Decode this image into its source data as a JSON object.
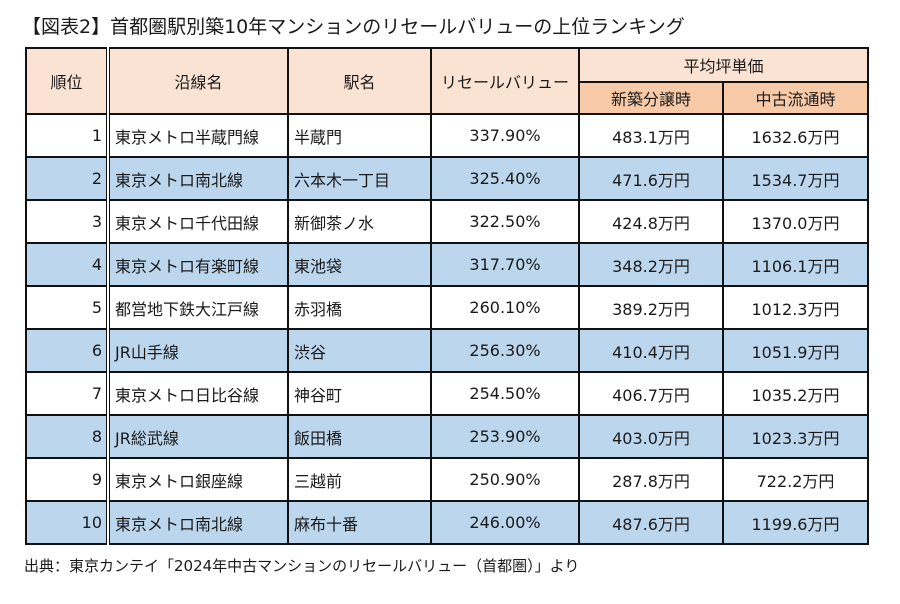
{
  "title": "【図表2】首都圏駅別築10年マンションのリセールバリューの上位ランキング",
  "table": {
    "headers": {
      "rank": "順位",
      "line": "沿線名",
      "station": "駅名",
      "resale_value": "リセールバリュー",
      "avg_price_group": "平均坪単価",
      "new_sale": "新築分譲時",
      "used": "中古流通時"
    },
    "rows": [
      {
        "rank": "1",
        "line": "東京メトロ半蔵門線",
        "station": "半蔵門",
        "resale_value": "337.90%",
        "new_sale": "483.1万円",
        "used": "1632.6万円"
      },
      {
        "rank": "2",
        "line": "東京メトロ南北線",
        "station": "六本木一丁目",
        "resale_value": "325.40%",
        "new_sale": "471.6万円",
        "used": "1534.7万円"
      },
      {
        "rank": "3",
        "line": "東京メトロ千代田線",
        "station": "新御茶ノ水",
        "resale_value": "322.50%",
        "new_sale": "424.8万円",
        "used": "1370.0万円"
      },
      {
        "rank": "4",
        "line": "東京メトロ有楽町線",
        "station": "東池袋",
        "resale_value": "317.70%",
        "new_sale": "348.2万円",
        "used": "1106.1万円"
      },
      {
        "rank": "5",
        "line": "都営地下鉄大江戸線",
        "station": "赤羽橋",
        "resale_value": "260.10%",
        "new_sale": "389.2万円",
        "used": "1012.3万円"
      },
      {
        "rank": "6",
        "line": "JR山手線",
        "station": "渋谷",
        "resale_value": "256.30%",
        "new_sale": "410.4万円",
        "used": "1051.9万円"
      },
      {
        "rank": "7",
        "line": "東京メトロ日比谷線",
        "station": "神谷町",
        "resale_value": "254.50%",
        "new_sale": "406.7万円",
        "used": "1035.2万円"
      },
      {
        "rank": "8",
        "line": "JR総武線",
        "station": "飯田橋",
        "resale_value": "253.90%",
        "new_sale": "403.0万円",
        "used": "1023.3万円"
      },
      {
        "rank": "9",
        "line": "東京メトロ銀座線",
        "station": "三越前",
        "resale_value": "250.90%",
        "new_sale": "287.8万円",
        "used": "722.2万円"
      },
      {
        "rank": "10",
        "line": "東京メトロ南北線",
        "station": "麻布十番",
        "resale_value": "246.00%",
        "new_sale": "487.6万円",
        "used": "1199.6万円"
      }
    ]
  },
  "source": "出典：東京カンテイ「2024年中古マンションのリセールバリュー（首都圏）」より",
  "colors": {
    "header_bg": "#fbe3d4",
    "subheader_bg": "#f8caa8",
    "stripe_bg": "#bcd6ee",
    "border": "#111111"
  }
}
